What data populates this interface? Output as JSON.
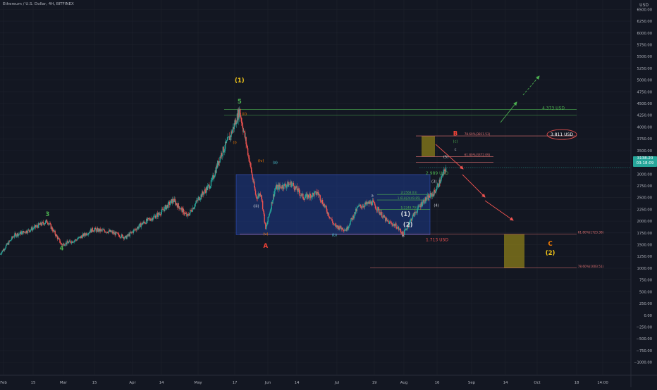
{
  "header": {
    "title": "Ethereum / U.S. Dollar, 4H, BITFINEX",
    "currency": "USD",
    "last_price": "3138.20",
    "countdown": "03:18:09"
  },
  "colors": {
    "background": "#131722",
    "grid": "#1e222d",
    "up": "#26a69a",
    "down": "#ef5350",
    "wave_green": "#4caf50",
    "wave_yellow": "#f0c419",
    "wave_orange": "#f57c00",
    "wave_red": "#f44336",
    "wave_cyan": "#4dd0e1",
    "wave_white": "#d1d4dc",
    "box_blue": "#1e3a8a",
    "box_gold": "#8b7d1a"
  },
  "chart_data": {
    "type": "line",
    "title": "Ethereum / U.S. Dollar, 4H, BITFINEX",
    "ylabel": "USD",
    "y_scale": "linear",
    "ylim": [
      -1150,
      6550
    ],
    "grid": true,
    "x_ticks": [
      "Feb",
      "15",
      "Mar",
      "15",
      "Apr",
      "14",
      "May",
      "17",
      "Jun",
      "14",
      "Jul",
      "19",
      "Aug",
      "16",
      "Sep",
      "14",
      "Oct",
      "18",
      "14:00"
    ],
    "y_ticks": [
      "6500.00",
      "6250.00",
      "6000.00",
      "5750.00",
      "5500.00",
      "5250.00",
      "5000.00",
      "4750.00",
      "4500.00",
      "4250.00",
      "4000.00",
      "3750.00",
      "3500.00",
      "3250.00",
      "3000.00",
      "2750.00",
      "2500.00",
      "2250.00",
      "2000.00",
      "1750.00",
      "1500.00",
      "1250.00",
      "1000.00",
      "750.00",
      "500.00",
      "250.00",
      "0.00",
      "−250.00",
      "−500.00",
      "−750.00",
      "−1000.00"
    ],
    "series": [
      {
        "x": [
          "2021-01-31",
          "2021-02-06",
          "2021-02-12",
          "2021-02-20",
          "2021-02-26",
          "2021-03-04",
          "2021-03-11",
          "2021-03-18",
          "2021-03-25",
          "2021-04-01",
          "2021-04-08",
          "2021-04-14",
          "2021-04-20",
          "2021-04-25",
          "2021-04-30",
          "2021-05-04",
          "2021-05-08",
          "2021-05-12",
          "2021-05-15",
          "2021-05-19",
          "2021-05-21",
          "2021-05-23",
          "2021-05-27",
          "2021-06-03",
          "2021-06-08",
          "2021-06-14",
          "2021-06-21",
          "2021-06-26",
          "2021-07-01",
          "2021-07-07",
          "2021-07-13",
          "2021-07-17",
          "2021-07-20",
          "2021-07-24",
          "2021-07-28",
          "2021-08-02",
          "2021-08-05",
          "2021-08-07"
        ],
        "values": [
          1300,
          1700,
          1800,
          2000,
          1500,
          1600,
          1820,
          1780,
          1650,
          1950,
          2150,
          2450,
          2100,
          2500,
          2800,
          3400,
          3800,
          4350,
          3600,
          2500,
          2600,
          1820,
          2700,
          2800,
          2500,
          2600,
          1900,
          1820,
          2300,
          2400,
          2000,
          1900,
          1720,
          2100,
          2400,
          2600,
          2900,
          3140
        ]
      }
    ],
    "annotations": {
      "wave_labels": [
        {
          "text": "(1)",
          "x": "2021-05-12",
          "y": 4950,
          "color": "yellow"
        },
        {
          "text": "5",
          "x": "2021-05-12",
          "y": 4500,
          "color": "green"
        },
        {
          "text": "3",
          "x": "2021-02-20",
          "y": 2110,
          "color": "green"
        },
        {
          "text": "4",
          "x": "2021-02-26",
          "y": 1380,
          "color": "green"
        },
        {
          "text": "(i)",
          "x": "2021-05-10",
          "y": 3650,
          "color": "orange"
        },
        {
          "text": "(ii)",
          "x": "2021-05-14",
          "y": 4250,
          "color": "orange"
        },
        {
          "text": "(iii)",
          "x": "2021-05-19",
          "y": 2290,
          "color": "white"
        },
        {
          "text": "(iv)",
          "x": "2021-05-21",
          "y": 3260,
          "color": "orange"
        },
        {
          "text": "(v)",
          "x": "2021-05-23",
          "y": 1700,
          "color": "orange"
        },
        {
          "text": "A",
          "x": "2021-05-23",
          "y": 1430,
          "color": "red"
        },
        {
          "text": "(a)",
          "x": "2021-05-27",
          "y": 3220,
          "color": "cyan"
        },
        {
          "text": "(b)",
          "x": "2021-06-21",
          "y": 1680,
          "color": "cyan"
        },
        {
          "text": "a",
          "x": "2021-07-07",
          "y": 2520,
          "color": "white"
        },
        {
          "text": "b",
          "x": "2021-07-20",
          "y": 1660,
          "color": "white"
        },
        {
          "text": "(1)",
          "x": "2021-07-21",
          "y": 2110,
          "color": "white"
        },
        {
          "text": "(2)",
          "x": "2021-07-22",
          "y": 1880,
          "color": "white"
        },
        {
          "text": "(3)",
          "x": "2021-08-02",
          "y": 2820,
          "color": "white"
        },
        {
          "text": "(4)",
          "x": "2021-08-03",
          "y": 2310,
          "color": "white"
        },
        {
          "text": "(5)",
          "x": "2021-08-07",
          "y": 3340,
          "color": "white"
        },
        {
          "text": "B",
          "x": "2021-08-11",
          "y": 3820,
          "color": "red"
        },
        {
          "text": "(c)",
          "x": "2021-08-11",
          "y": 3670,
          "color": "green"
        },
        {
          "text": "c",
          "x": "2021-08-11",
          "y": 3500,
          "color": "white"
        },
        {
          "text": "C",
          "x": "2021-09-20",
          "y": 1480,
          "color": "orange"
        },
        {
          "text": "(2)",
          "x": "2021-09-20",
          "y": 1280,
          "color": "yellow"
        }
      ],
      "levels": [
        {
          "text": "4.373 USD",
          "y": 4373,
          "color": "green"
        },
        {
          "text": "3.811 USD",
          "y": 3811,
          "color": "white",
          "circled": true
        },
        {
          "text": "2.989 USD",
          "y": 2989,
          "color": "green"
        },
        {
          "text": "1.713 USD",
          "y": 1713,
          "color": "red"
        }
      ],
      "fib_labels": [
        {
          "text": "78.60%(3811.53)",
          "y": 3811
        },
        {
          "text": "61.80%(3372.09)",
          "y": 3372
        },
        {
          "text": "2(2568.03)",
          "y": 2568
        },
        {
          "text": "1.618(2449.85)",
          "y": 2449
        },
        {
          "text": "1(2249.79)",
          "y": 2249
        },
        {
          "text": "61.80%(1723.38)",
          "y": 1723
        },
        {
          "text": "78.60%(1003.51)",
          "y": 1003
        }
      ]
    }
  }
}
